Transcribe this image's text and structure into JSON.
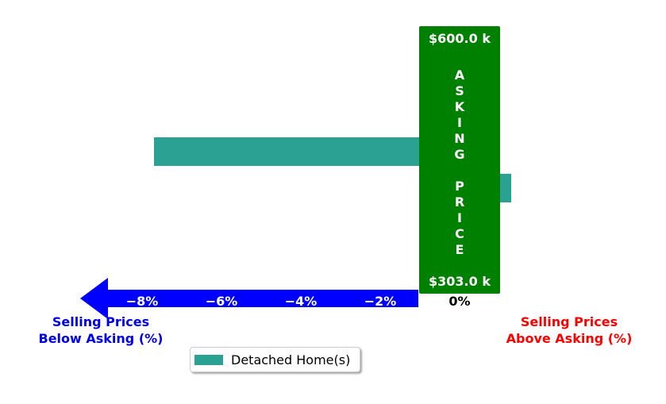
{
  "chart_data": {
    "type": "bar",
    "orientation": "horizontal",
    "xlabel": "",
    "ylabel": "",
    "xlim": [
      -9,
      1.2
    ],
    "xticks": [
      -8,
      -6,
      -4,
      -2,
      0
    ],
    "xtick_labels": [
      "−8%",
      "−6%",
      "−4%",
      "−2%",
      "0%"
    ],
    "series": [
      {
        "name": "Detached Home(s)",
        "values": [
          -7.7,
          1.3
        ],
        "color": "#2aa193"
      }
    ],
    "asking_price_box": {
      "top_label": "$600.0 k",
      "bottom_label": "$303.0 k",
      "vertical_text": [
        "A",
        "S",
        "K",
        "I",
        "N",
        "G",
        "",
        "P",
        "R",
        "I",
        "C",
        "E"
      ],
      "color": "#008000"
    },
    "below_label": [
      "Selling Prices",
      "Below Asking (%)"
    ],
    "above_label": [
      "Selling Prices",
      "Above Asking (%)"
    ],
    "below_color": "#0000ee",
    "above_color": "#ff0000",
    "arrow_color": "#0000ff",
    "legend": "bottom-center"
  }
}
